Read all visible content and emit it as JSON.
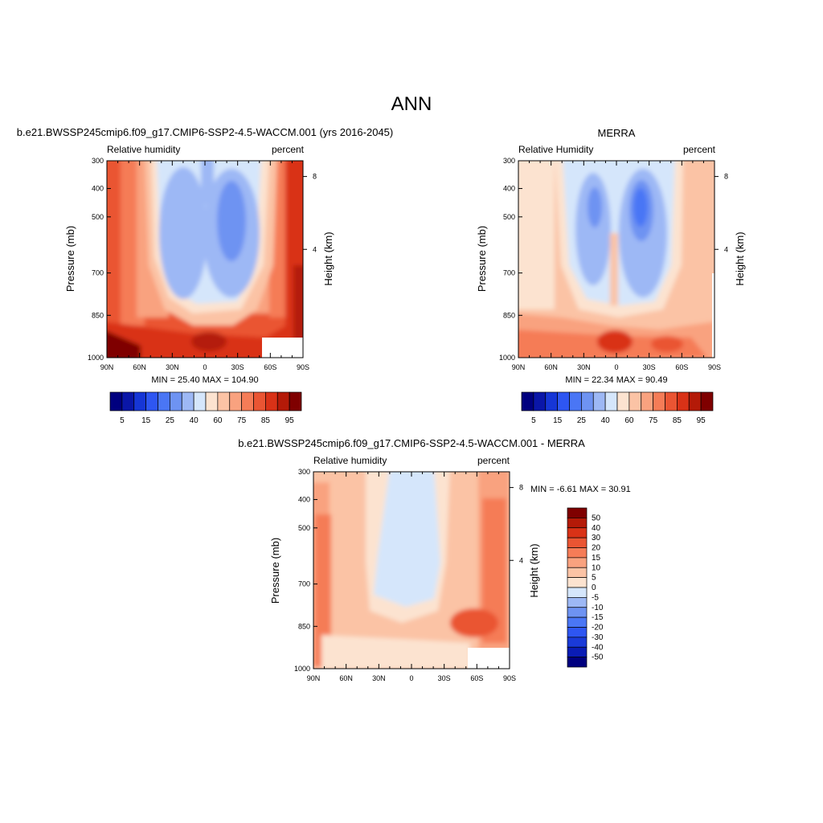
{
  "figure": {
    "title": "ANN"
  },
  "colors": {
    "rh_scale": [
      "#00007f",
      "#0a16a8",
      "#1636d6",
      "#2e56f2",
      "#4a76f5",
      "#6e93f2",
      "#9db8f5",
      "#d5e6fb",
      "#fce3d0",
      "#fbc3a5",
      "#f9a27f",
      "#f57c57",
      "#ea5533",
      "#d93217",
      "#b41a08",
      "#7f0000"
    ],
    "diff_scale": [
      "#00007f",
      "#0a1cb5",
      "#1a3ad8",
      "#2e56f2",
      "#4a76f5",
      "#6e93f2",
      "#9db8f5",
      "#d5e6fb",
      "#fce3d0",
      "#fbc3a5",
      "#f9a27f",
      "#f57c57",
      "#ea5533",
      "#d93217",
      "#b41a08",
      "#7f0000"
    ]
  },
  "chart_data": [
    {
      "type": "heatmap",
      "title": "b.e21.BWSSP245cmip6.f09_g17.CMIP6-SSP2-4.5-WACCM.001 (yrs 2016-2045)",
      "left_label": "Relative humidity",
      "right_label": "percent",
      "ylabel": "Pressure (mb)",
      "y2label": "Height (km)",
      "yticks": [
        "300",
        "400",
        "500",
        "700",
        "850",
        "1000"
      ],
      "y2ticks": [
        "8",
        "4"
      ],
      "xticks": [
        "90N",
        "60N",
        "30N",
        "0",
        "30S",
        "60S",
        "90S"
      ],
      "stats": "MIN =  25.40  MAX = 104.90",
      "min": 25.4,
      "max": 104.9,
      "colorbar_labels": [
        "5",
        "15",
        "25",
        "40",
        "60",
        "75",
        "85",
        "95"
      ]
    },
    {
      "type": "heatmap",
      "title": "MERRA",
      "left_label": "Relative Humidity",
      "right_label": "percent",
      "ylabel": "Pressure (mb)",
      "y2label": "Height (km)",
      "yticks": [
        "300",
        "400",
        "500",
        "700",
        "850",
        "1000"
      ],
      "y2ticks": [
        "8",
        "4"
      ],
      "xticks": [
        "90N",
        "60N",
        "30N",
        "0",
        "30S",
        "60S",
        "90S"
      ],
      "stats": "MIN =  22.34  MAX =  90.49",
      "min": 22.34,
      "max": 90.49,
      "colorbar_labels": [
        "5",
        "15",
        "25",
        "40",
        "60",
        "75",
        "85",
        "95"
      ]
    },
    {
      "type": "heatmap",
      "title": "b.e21.BWSSP245cmip6.f09_g17.CMIP6-SSP2-4.5-WACCM.001 - MERRA",
      "left_label": "Relative humidity",
      "right_label": "percent",
      "ylabel": "Pressure (mb)",
      "y2label": "Height (km)",
      "yticks": [
        "300",
        "400",
        "500",
        "700",
        "850",
        "1000"
      ],
      "y2ticks": [
        "8",
        "4"
      ],
      "xticks": [
        "90N",
        "60N",
        "30N",
        "0",
        "30S",
        "60S",
        "90S"
      ],
      "stats": "MIN =  -6.61  MAX =  30.91",
      "min": -6.61,
      "max": 30.91,
      "colorbar_labels": [
        "50",
        "40",
        "30",
        "20",
        "15",
        "10",
        "5",
        "0",
        "-5",
        "-10",
        "-15",
        "-20",
        "-30",
        "-40",
        "-50"
      ]
    }
  ]
}
